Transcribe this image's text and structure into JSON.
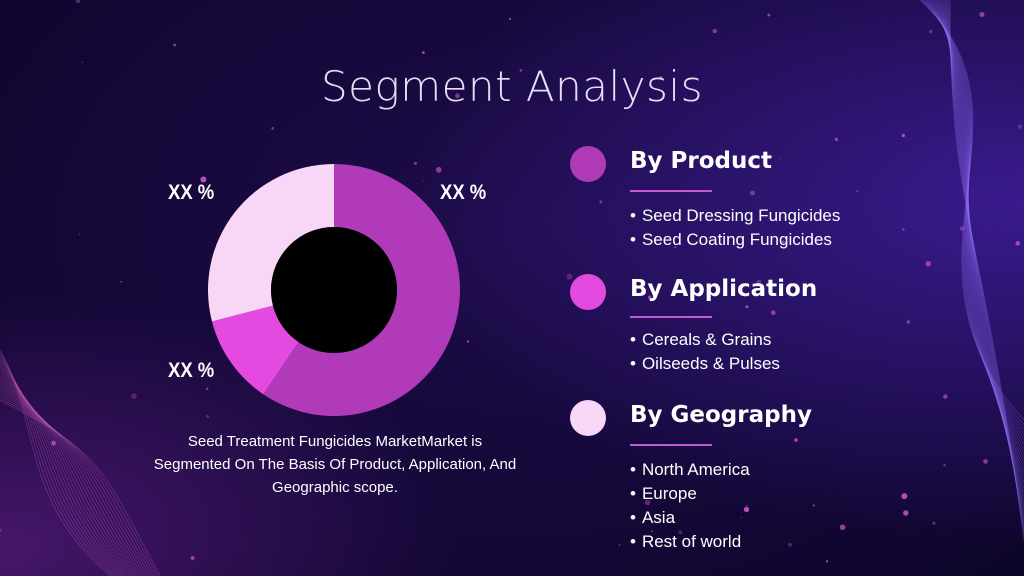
{
  "title": "Segment Analysis",
  "chart_data": {
    "type": "pie",
    "style": "donut",
    "slices": [
      {
        "label": "XX %",
        "value": 59.5,
        "color": "#b03ab8"
      },
      {
        "label": "XX %",
        "value": 11.5,
        "color": "#e54ae0"
      },
      {
        "label": "XX %",
        "value": 29.0,
        "color": "#f8d6f6"
      }
    ]
  },
  "description": "Seed Treatment Fungicides MarketMarket is Segmented On The Basis Of Product, Application, And Geographic scope.",
  "segments": [
    {
      "heading": "By Product",
      "dot_color": "#b03ab8",
      "items": [
        "Seed Dressing Fungicides",
        "Seed Coating Fungicides"
      ]
    },
    {
      "heading": "By Application",
      "dot_color": "#e54ae0",
      "items": [
        "Cereals & Grains",
        "Oilseeds & Pulses"
      ]
    },
    {
      "heading": "By Geography",
      "dot_color": "#f8d6f6",
      "items": [
        "North America",
        "Europe",
        "Asia",
        "Rest of world"
      ]
    }
  ],
  "colors": {
    "background": "#140838",
    "accent_rule": "#c25ad6"
  }
}
